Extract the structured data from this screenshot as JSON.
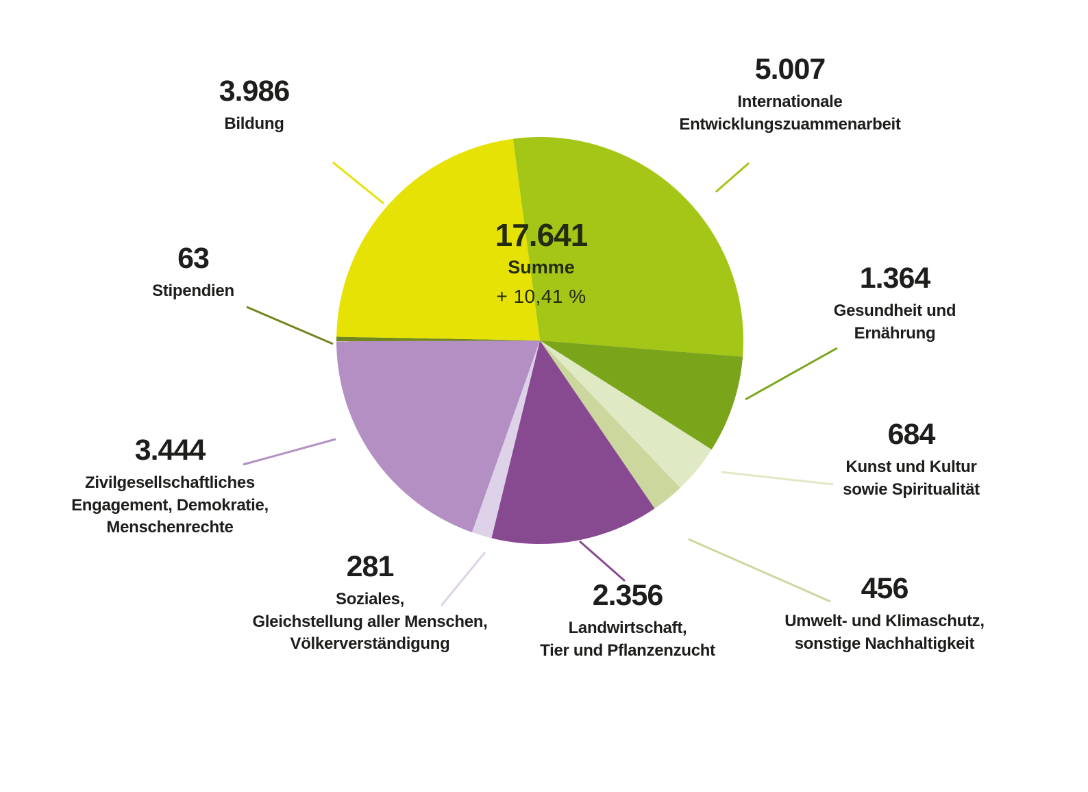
{
  "chart_data": {
    "type": "pie",
    "title": "",
    "legend_position": "around",
    "grid": false,
    "start_angle_deg": -7.6,
    "center": {
      "value": "17.641",
      "label": "Summe",
      "change": "+ 10,41 %",
      "total": 17641
    },
    "slices": [
      {
        "id": "internationale",
        "display": "5.007",
        "value": 5007,
        "label": "Internationale\nEntwicklungszuammenarbeit",
        "color": "#a3c617"
      },
      {
        "id": "gesundheit",
        "display": "1.364",
        "value": 1364,
        "label": "Gesundheit und\nErnährung",
        "color": "#7aa51b"
      },
      {
        "id": "kunst",
        "display": "684",
        "value": 684,
        "label": "Kunst und Kultur\nsowie Spiritualität",
        "color": "#dfe9c4"
      },
      {
        "id": "umwelt",
        "display": "456",
        "value": 456,
        "label": "Umwelt- und Klimaschutz,\nsonstige Nachhaltigkeit",
        "color": "#ccd79e"
      },
      {
        "id": "landwirtschaft",
        "display": "2.356",
        "value": 2356,
        "label": "Landwirtschaft,\nTier und Pflanzenzucht",
        "color": "#874a91"
      },
      {
        "id": "soziales",
        "display": "281",
        "value": 281,
        "label": "Soziales,\nGleichstellung aller Menschen,\nVölkerverständigung",
        "color": "#ded2e9"
      },
      {
        "id": "zivilgesellschaft",
        "display": "3.444",
        "value": 3444,
        "label": "Zivilgesellschaftliches\nEngagement, Demokratie,\nMenschenrechte",
        "color": "#b38fc3"
      },
      {
        "id": "stipendien",
        "display": "63",
        "value": 63,
        "label": "Stipendien",
        "color": "#71861f"
      },
      {
        "id": "bildung",
        "display": "3.986",
        "value": 3986,
        "label": "Bildung",
        "color": "#e6e205"
      }
    ]
  },
  "colors": {
    "background": "#ffffff",
    "label_text": "#1d1d1b",
    "center_text": "#232b10"
  }
}
